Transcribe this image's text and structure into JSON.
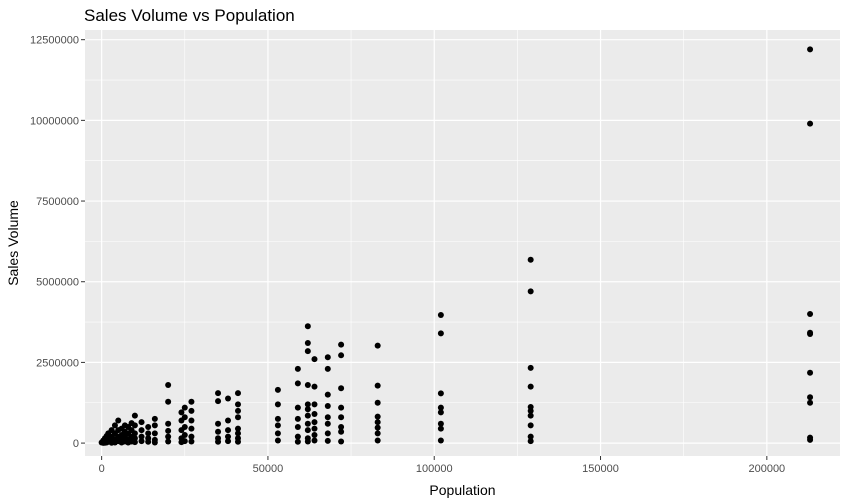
{
  "chart_data": {
    "type": "scatter",
    "title": "Sales Volume vs Population",
    "xlabel": "Population",
    "ylabel": "Sales Volume",
    "xlim": [
      -5000,
      222000
    ],
    "ylim": [
      -400000,
      12800000
    ],
    "x_ticks": [
      0,
      50000,
      100000,
      150000,
      200000
    ],
    "x_tick_labels": [
      "0",
      "50000",
      "100000",
      "150000",
      "200000"
    ],
    "y_ticks": [
      0,
      2500000,
      5000000,
      7500000,
      10000000,
      12500000
    ],
    "y_tick_labels": [
      "0",
      "2500000",
      "5000000",
      "7500000",
      "10000000",
      "12500000"
    ],
    "grid": true,
    "legend": "none",
    "colors": {
      "panel_background": "#ebebeb",
      "grid_major": "#ffffff",
      "point": "#000000"
    },
    "points": [
      {
        "x": 213000,
        "y": 12200000
      },
      {
        "x": 213000,
        "y": 9900000
      },
      {
        "x": 213000,
        "y": 4000000
      },
      {
        "x": 213000,
        "y": 3420000
      },
      {
        "x": 213000,
        "y": 3380000
      },
      {
        "x": 213000,
        "y": 2180000
      },
      {
        "x": 213000,
        "y": 1420000
      },
      {
        "x": 213000,
        "y": 1250000
      },
      {
        "x": 213000,
        "y": 170000
      },
      {
        "x": 213000,
        "y": 100000
      },
      {
        "x": 129000,
        "y": 5680000
      },
      {
        "x": 129000,
        "y": 4700000
      },
      {
        "x": 129000,
        "y": 2330000
      },
      {
        "x": 129000,
        "y": 1750000
      },
      {
        "x": 129000,
        "y": 1120000
      },
      {
        "x": 129000,
        "y": 1000000
      },
      {
        "x": 129000,
        "y": 850000
      },
      {
        "x": 129000,
        "y": 550000
      },
      {
        "x": 129000,
        "y": 200000
      },
      {
        "x": 129000,
        "y": 60000
      },
      {
        "x": 102000,
        "y": 3970000
      },
      {
        "x": 102000,
        "y": 3400000
      },
      {
        "x": 102000,
        "y": 1540000
      },
      {
        "x": 102000,
        "y": 1100000
      },
      {
        "x": 102000,
        "y": 950000
      },
      {
        "x": 102000,
        "y": 600000
      },
      {
        "x": 102000,
        "y": 450000
      },
      {
        "x": 102000,
        "y": 80000
      },
      {
        "x": 83000,
        "y": 3020000
      },
      {
        "x": 83000,
        "y": 1780000
      },
      {
        "x": 83000,
        "y": 1250000
      },
      {
        "x": 83000,
        "y": 820000
      },
      {
        "x": 83000,
        "y": 650000
      },
      {
        "x": 83000,
        "y": 480000
      },
      {
        "x": 83000,
        "y": 300000
      },
      {
        "x": 83000,
        "y": 80000
      },
      {
        "x": 72000,
        "y": 3050000
      },
      {
        "x": 72000,
        "y": 2720000
      },
      {
        "x": 72000,
        "y": 1700000
      },
      {
        "x": 72000,
        "y": 1100000
      },
      {
        "x": 72000,
        "y": 800000
      },
      {
        "x": 72000,
        "y": 500000
      },
      {
        "x": 72000,
        "y": 350000
      },
      {
        "x": 72000,
        "y": 50000
      },
      {
        "x": 68000,
        "y": 2660000
      },
      {
        "x": 68000,
        "y": 2300000
      },
      {
        "x": 68000,
        "y": 1500000
      },
      {
        "x": 68000,
        "y": 1150000
      },
      {
        "x": 68000,
        "y": 800000
      },
      {
        "x": 68000,
        "y": 600000
      },
      {
        "x": 68000,
        "y": 300000
      },
      {
        "x": 68000,
        "y": 70000
      },
      {
        "x": 64000,
        "y": 2600000
      },
      {
        "x": 64000,
        "y": 1750000
      },
      {
        "x": 64000,
        "y": 1200000
      },
      {
        "x": 64000,
        "y": 900000
      },
      {
        "x": 64000,
        "y": 650000
      },
      {
        "x": 64000,
        "y": 450000
      },
      {
        "x": 64000,
        "y": 250000
      },
      {
        "x": 64000,
        "y": 80000
      },
      {
        "x": 62000,
        "y": 3620000
      },
      {
        "x": 62000,
        "y": 3100000
      },
      {
        "x": 62000,
        "y": 2850000
      },
      {
        "x": 62000,
        "y": 1800000
      },
      {
        "x": 62000,
        "y": 1200000
      },
      {
        "x": 62000,
        "y": 1050000
      },
      {
        "x": 62000,
        "y": 850000
      },
      {
        "x": 62000,
        "y": 600000
      },
      {
        "x": 62000,
        "y": 400000
      },
      {
        "x": 62000,
        "y": 150000
      },
      {
        "x": 62000,
        "y": 50000
      },
      {
        "x": 59000,
        "y": 2300000
      },
      {
        "x": 59000,
        "y": 1850000
      },
      {
        "x": 59000,
        "y": 1100000
      },
      {
        "x": 59000,
        "y": 750000
      },
      {
        "x": 59000,
        "y": 500000
      },
      {
        "x": 59000,
        "y": 200000
      },
      {
        "x": 59000,
        "y": 40000
      },
      {
        "x": 53000,
        "y": 1650000
      },
      {
        "x": 53000,
        "y": 1200000
      },
      {
        "x": 53000,
        "y": 750000
      },
      {
        "x": 53000,
        "y": 550000
      },
      {
        "x": 53000,
        "y": 300000
      },
      {
        "x": 53000,
        "y": 80000
      },
      {
        "x": 41000,
        "y": 1550000
      },
      {
        "x": 41000,
        "y": 1200000
      },
      {
        "x": 41000,
        "y": 1000000
      },
      {
        "x": 41000,
        "y": 800000
      },
      {
        "x": 41000,
        "y": 450000
      },
      {
        "x": 41000,
        "y": 300000
      },
      {
        "x": 41000,
        "y": 150000
      },
      {
        "x": 41000,
        "y": 40000
      },
      {
        "x": 38000,
        "y": 1380000
      },
      {
        "x": 38000,
        "y": 700000
      },
      {
        "x": 38000,
        "y": 400000
      },
      {
        "x": 38000,
        "y": 200000
      },
      {
        "x": 38000,
        "y": 60000
      },
      {
        "x": 35000,
        "y": 1550000
      },
      {
        "x": 35000,
        "y": 1300000
      },
      {
        "x": 35000,
        "y": 600000
      },
      {
        "x": 35000,
        "y": 350000
      },
      {
        "x": 35000,
        "y": 150000
      },
      {
        "x": 35000,
        "y": 40000
      },
      {
        "x": 27000,
        "y": 1280000
      },
      {
        "x": 27000,
        "y": 1000000
      },
      {
        "x": 27000,
        "y": 700000
      },
      {
        "x": 27000,
        "y": 450000
      },
      {
        "x": 27000,
        "y": 200000
      },
      {
        "x": 27000,
        "y": 50000
      },
      {
        "x": 25000,
        "y": 1100000
      },
      {
        "x": 25000,
        "y": 800000
      },
      {
        "x": 25000,
        "y": 500000
      },
      {
        "x": 25000,
        "y": 250000
      },
      {
        "x": 25000,
        "y": 60000
      },
      {
        "x": 24000,
        "y": 950000
      },
      {
        "x": 24000,
        "y": 700000
      },
      {
        "x": 24000,
        "y": 400000
      },
      {
        "x": 24000,
        "y": 150000
      },
      {
        "x": 24000,
        "y": 30000
      },
      {
        "x": 20000,
        "y": 1800000
      },
      {
        "x": 20000,
        "y": 1280000
      },
      {
        "x": 20000,
        "y": 600000
      },
      {
        "x": 20000,
        "y": 380000
      },
      {
        "x": 20000,
        "y": 200000
      },
      {
        "x": 20000,
        "y": 50000
      },
      {
        "x": 16000,
        "y": 750000
      },
      {
        "x": 16000,
        "y": 550000
      },
      {
        "x": 16000,
        "y": 300000
      },
      {
        "x": 16000,
        "y": 100000
      },
      {
        "x": 16000,
        "y": 20000
      },
      {
        "x": 14000,
        "y": 500000
      },
      {
        "x": 14000,
        "y": 300000
      },
      {
        "x": 14000,
        "y": 150000
      },
      {
        "x": 14000,
        "y": 40000
      },
      {
        "x": 12000,
        "y": 650000
      },
      {
        "x": 12000,
        "y": 400000
      },
      {
        "x": 12000,
        "y": 200000
      },
      {
        "x": 12000,
        "y": 60000
      },
      {
        "x": 10000,
        "y": 850000
      },
      {
        "x": 10000,
        "y": 550000
      },
      {
        "x": 10000,
        "y": 300000
      },
      {
        "x": 10000,
        "y": 150000
      },
      {
        "x": 10000,
        "y": 30000
      },
      {
        "x": 9000,
        "y": 620000
      },
      {
        "x": 9000,
        "y": 400000
      },
      {
        "x": 9000,
        "y": 200000
      },
      {
        "x": 9000,
        "y": 50000
      },
      {
        "x": 8000,
        "y": 500000
      },
      {
        "x": 8000,
        "y": 300000
      },
      {
        "x": 8000,
        "y": 120000
      },
      {
        "x": 8000,
        "y": 20000
      },
      {
        "x": 7000,
        "y": 550000
      },
      {
        "x": 7000,
        "y": 350000
      },
      {
        "x": 7000,
        "y": 180000
      },
      {
        "x": 7000,
        "y": 50000
      },
      {
        "x": 6000,
        "y": 450000
      },
      {
        "x": 6000,
        "y": 250000
      },
      {
        "x": 6000,
        "y": 100000
      },
      {
        "x": 6000,
        "y": 20000
      },
      {
        "x": 5000,
        "y": 700000
      },
      {
        "x": 5000,
        "y": 400000
      },
      {
        "x": 5000,
        "y": 200000
      },
      {
        "x": 5000,
        "y": 60000
      },
      {
        "x": 4000,
        "y": 550000
      },
      {
        "x": 4000,
        "y": 300000
      },
      {
        "x": 4000,
        "y": 120000
      },
      {
        "x": 4000,
        "y": 20000
      },
      {
        "x": 3000,
        "y": 400000
      },
      {
        "x": 3000,
        "y": 200000
      },
      {
        "x": 3000,
        "y": 80000
      },
      {
        "x": 3000,
        "y": 10000
      },
      {
        "x": 2000,
        "y": 300000
      },
      {
        "x": 2000,
        "y": 150000
      },
      {
        "x": 2000,
        "y": 50000
      },
      {
        "x": 1500,
        "y": 220000
      },
      {
        "x": 1500,
        "y": 100000
      },
      {
        "x": 1500,
        "y": 20000
      },
      {
        "x": 1000,
        "y": 150000
      },
      {
        "x": 1000,
        "y": 60000
      },
      {
        "x": 1000,
        "y": 10000
      },
      {
        "x": 500,
        "y": 80000
      },
      {
        "x": 500,
        "y": 30000
      },
      {
        "x": 500,
        "y": 5000
      },
      {
        "x": 0,
        "y": 20000
      }
    ]
  }
}
